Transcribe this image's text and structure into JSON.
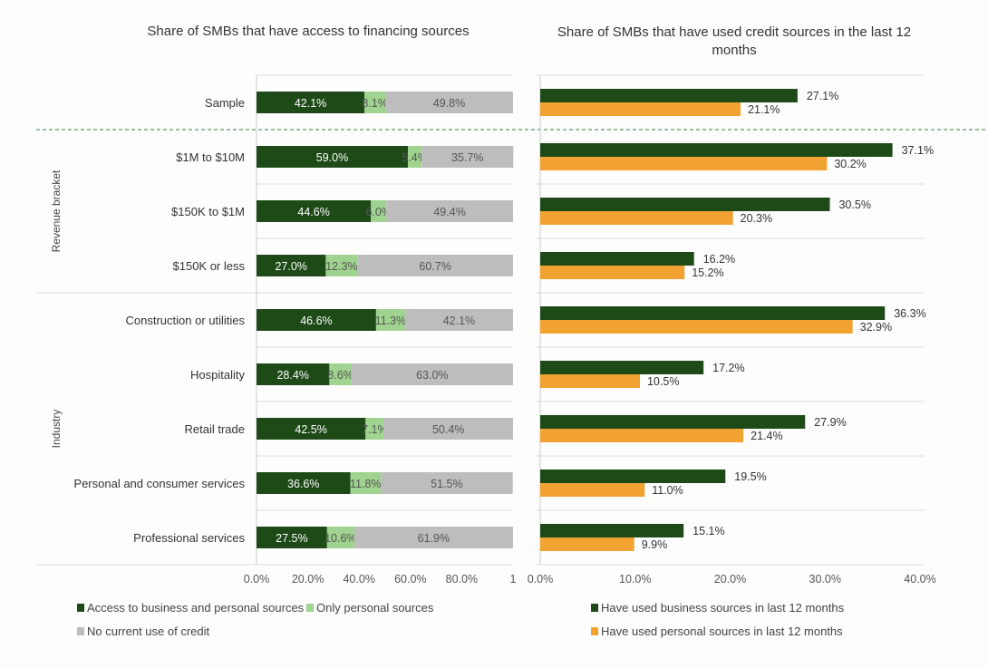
{
  "chart_data": [
    {
      "type": "bar",
      "orientation": "horizontal",
      "stacked": true,
      "title": "Share of SMBs that have access to financing sources",
      "categories": [
        "Sample",
        "$1M to $10M",
        "$150K to $1M",
        "$150K or less",
        "Construction or utilities",
        "Hospitality",
        "Retail trade",
        "Personal and consumer services",
        "Professional services"
      ],
      "groups": [
        {
          "label": "Revenue bracket",
          "categories": [
            "$1M to $10M",
            "$150K to $1M",
            "$150K or less"
          ]
        },
        {
          "label": "Industry",
          "categories": [
            "Construction or utilities",
            "Hospitality",
            "Retail trade",
            "Personal and consumer services",
            "Professional services"
          ]
        }
      ],
      "series": [
        {
          "name": "Access to business  and personal sources",
          "color": "#1e4a18",
          "values": [
            42.1,
            59.0,
            44.6,
            27.0,
            46.6,
            28.4,
            42.5,
            36.6,
            27.5
          ]
        },
        {
          "name": "Only personal sources",
          "color": "#9fd38f",
          "values": [
            8.1,
            5.4,
            6.0,
            12.3,
            11.3,
            8.6,
            7.1,
            11.8,
            10.6
          ]
        },
        {
          "name": "No current use of credit",
          "color": "#bdbdbd",
          "values": [
            49.8,
            35.7,
            49.4,
            60.7,
            42.1,
            63.0,
            50.4,
            51.5,
            61.9
          ]
        }
      ],
      "xticks": [
        "0.0%",
        "20.0%",
        "40.0%",
        "60.0%",
        "80.0%",
        "1"
      ],
      "xlim": [
        0,
        100
      ],
      "legend": "bottom"
    },
    {
      "type": "bar",
      "orientation": "horizontal",
      "title": "Share of SMBs that have used credit sources in the last 12 months",
      "categories": [
        "Sample",
        "$1M to $10M",
        "$150K to $1M",
        "$150K or less",
        "Construction or utilities",
        "Hospitality",
        "Retail trade",
        "Personal and consumer services",
        "Professional services"
      ],
      "series": [
        {
          "name": "Have used business sources in last 12 months",
          "color": "#1e4a18",
          "values": [
            27.1,
            37.1,
            30.5,
            16.2,
            36.3,
            17.2,
            27.9,
            19.5,
            15.1
          ]
        },
        {
          "name": "Have used personal sources in last 12 months",
          "color": "#f2a230",
          "values": [
            21.1,
            30.2,
            20.3,
            15.2,
            32.9,
            10.5,
            21.4,
            11.0,
            9.9
          ]
        }
      ],
      "xticks": [
        "0.0%",
        "10.0%",
        "20.0%",
        "30.0%",
        "40.0%"
      ],
      "xlim": [
        0,
        40
      ],
      "legend": "bottom"
    }
  ]
}
